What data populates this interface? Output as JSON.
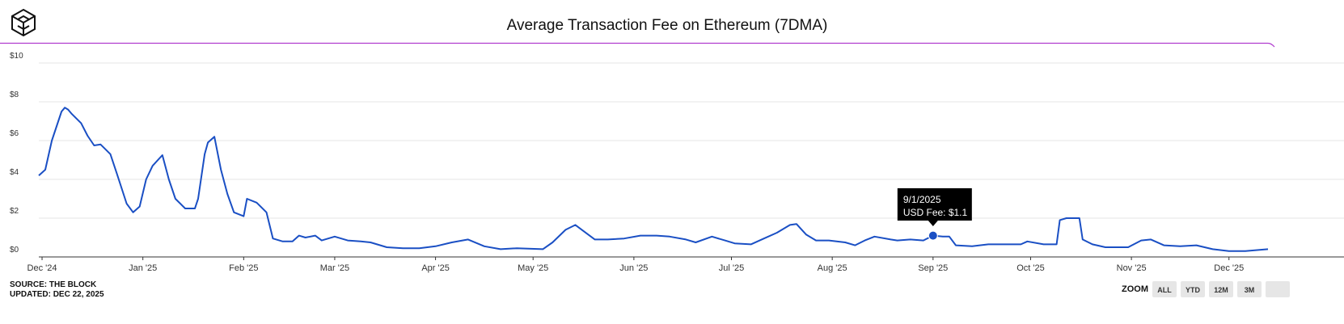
{
  "chart_data": {
    "type": "line",
    "title": "Average Transaction Fee on Ethereum (7DMA)",
    "x": [
      "11/30/2024",
      "12/2/2024",
      "12/4/2024",
      "12/7/2024",
      "12/8/2024",
      "12/9/2024",
      "12/10/2024",
      "12/13/2024",
      "12/15/2024",
      "12/17/2024",
      "12/19/2024",
      "12/22/2024",
      "12/24/2024",
      "12/27/2024",
      "12/29/2024",
      "12/31/2024",
      "1/2/2025",
      "1/4/2025",
      "1/7/2025",
      "1/9/2025",
      "1/11/2025",
      "1/14/2025",
      "1/17/2025",
      "1/18/2025",
      "1/20/2025",
      "1/21/2025",
      "1/23/2025",
      "1/25/2025",
      "1/27/2025",
      "1/29/2025",
      "2/1/2025",
      "2/2/2025",
      "2/5/2025",
      "2/8/2025",
      "2/10/2025",
      "2/13/2025",
      "2/16/2025",
      "2/18/2025",
      "2/20/2025",
      "2/23/2025",
      "2/25/2025",
      "3/1/2025",
      "3/5/2025",
      "3/9/2025",
      "3/12/2025",
      "3/17/2025",
      "3/22/2025",
      "3/27/2025",
      "4/1/2025",
      "4/6/2025",
      "4/11/2025",
      "4/16/2025",
      "4/21/2025",
      "4/26/2025",
      "5/4/2025",
      "5/7/2025",
      "5/11/2025",
      "5/14/2025",
      "5/16/2025",
      "5/20/2025",
      "5/24/2025",
      "5/29/2025",
      "6/3/2025",
      "6/8/2025",
      "6/12/2025",
      "6/17/2025",
      "6/20/2025",
      "6/25/2025",
      "6/29/2025",
      "7/2/2025",
      "7/7/2025",
      "7/11/2025",
      "7/15/2025",
      "7/19/2025",
      "7/21/2025",
      "7/24/2025",
      "7/27/2025",
      "7/31/2025",
      "8/5/2025",
      "8/8/2025",
      "8/11/2025",
      "8/14/2025",
      "8/19/2025",
      "8/21/2025",
      "8/25/2025",
      "8/29/2025",
      "9/1/2025",
      "9/4/2025",
      "9/6/2025",
      "9/8/2025",
      "9/13/2025",
      "9/18/2025",
      "9/23/2025",
      "9/28/2025",
      "9/30/2025",
      "10/5/2025",
      "10/9/2025",
      "10/10/2025",
      "10/12/2025",
      "10/16/2025",
      "10/17/2025",
      "10/20/2025",
      "10/24/2025",
      "10/27/2025",
      "10/31/2025",
      "11/4/2025",
      "11/7/2025",
      "11/11/2025",
      "11/16/2025",
      "11/21/2025",
      "11/26/2025",
      "12/1/2025",
      "12/6/2025",
      "12/13/2025"
    ],
    "values": [
      4.2,
      4.5,
      6.0,
      7.5,
      7.7,
      7.6,
      7.4,
      6.9,
      6.25,
      5.75,
      5.8,
      5.3,
      4.3,
      2.75,
      2.3,
      2.6,
      4.0,
      4.7,
      5.25,
      4.0,
      3.0,
      2.5,
      2.5,
      3.0,
      5.3,
      5.9,
      6.2,
      4.5,
      3.25,
      2.3,
      2.1,
      3.0,
      2.8,
      2.3,
      0.95,
      0.8,
      0.8,
      1.1,
      1.0,
      1.1,
      0.85,
      1.05,
      0.85,
      0.8,
      0.75,
      0.5,
      0.45,
      0.45,
      0.55,
      0.75,
      0.9,
      0.55,
      0.4,
      0.45,
      0.4,
      0.75,
      1.4,
      1.65,
      1.4,
      0.9,
      0.9,
      0.95,
      1.1,
      1.1,
      1.05,
      0.9,
      0.75,
      1.05,
      0.85,
      0.7,
      0.65,
      0.95,
      1.25,
      1.65,
      1.7,
      1.15,
      0.85,
      0.85,
      0.75,
      0.6,
      0.85,
      1.05,
      0.9,
      0.85,
      0.9,
      0.85,
      1.1,
      1.05,
      1.05,
      0.6,
      0.55,
      0.65,
      0.65,
      0.65,
      0.8,
      0.65,
      0.65,
      1.9,
      2.0,
      2.0,
      0.9,
      0.65,
      0.5,
      0.5,
      0.5,
      0.85,
      0.9,
      0.6,
      0.55,
      0.6,
      0.4,
      0.3,
      0.3,
      0.4
    ],
    "color": "#1a4fc4",
    "xlim": [
      "11/30/2024",
      "12/13/2025"
    ],
    "xticks": [
      {
        "value": "12/1/2024",
        "label": "Dec '24"
      },
      {
        "value": "1/1/2025",
        "label": "Jan '25"
      },
      {
        "value": "2/1/2025",
        "label": "Feb '25"
      },
      {
        "value": "3/1/2025",
        "label": "Mar '25"
      },
      {
        "value": "4/1/2025",
        "label": "Apr '25"
      },
      {
        "value": "5/1/2025",
        "label": "May '25"
      },
      {
        "value": "6/1/2025",
        "label": "Jun '25"
      },
      {
        "value": "7/1/2025",
        "label": "Jul '25"
      },
      {
        "value": "8/1/2025",
        "label": "Aug '25"
      },
      {
        "value": "9/1/2025",
        "label": "Sep '25"
      },
      {
        "value": "10/1/2025",
        "label": "Oct '25"
      },
      {
        "value": "11/1/2025",
        "label": "Nov '25"
      },
      {
        "value": "12/1/2025",
        "label": "Dec '25"
      }
    ],
    "ylim": [
      0,
      10
    ],
    "yticks": [
      {
        "value": 0,
        "label": "$0"
      },
      {
        "value": 2,
        "label": "$2"
      },
      {
        "value": 4,
        "label": "$4"
      },
      {
        "value": 6,
        "label": "$6"
      },
      {
        "value": 8,
        "label": "$8"
      },
      {
        "value": 10,
        "label": "$10"
      }
    ],
    "grid": true,
    "tooltip": {
      "x": "9/1/2025",
      "label": "USD Fee: $1.1",
      "value": 1.1
    },
    "source": "SOURCE: THE BLOCK",
    "updated": "UPDATED: DEC 22, 2025",
    "zoom": {
      "label": "ZOOM",
      "buttons": [
        "ALL",
        "YTD",
        "12M",
        "3M"
      ]
    }
  }
}
